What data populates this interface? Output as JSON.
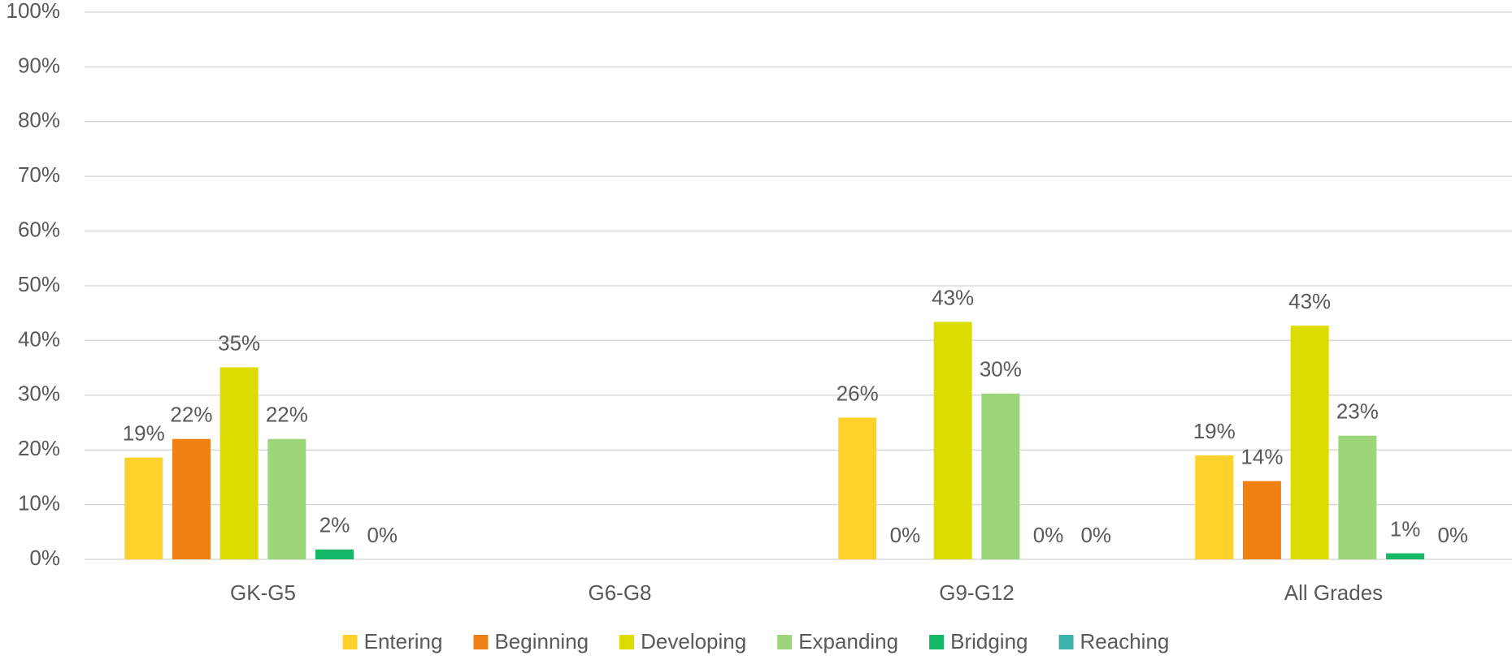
{
  "chart_data": {
    "type": "bar",
    "categories": [
      "GK-G5",
      "G6-G8",
      "G9-G12",
      "All Grades"
    ],
    "series": [
      {
        "name": "Entering",
        "color": "#ffd12b",
        "values": [
          18.6,
          null,
          25.9,
          19.0
        ],
        "value_labels": [
          "19%",
          null,
          "26%",
          "19%"
        ]
      },
      {
        "name": "Beginning",
        "color": "#f28113",
        "values": [
          22.0,
          null,
          0,
          14.3
        ],
        "value_labels": [
          "22%",
          null,
          "0%",
          "14%"
        ]
      },
      {
        "name": "Developing",
        "color": "#dcdc00",
        "values": [
          35.1,
          null,
          43.4,
          42.7
        ],
        "value_labels": [
          "35%",
          null,
          "43%",
          "43%"
        ]
      },
      {
        "name": "Expanding",
        "color": "#9dd57a",
        "values": [
          22.0,
          null,
          30.3,
          22.6
        ],
        "value_labels": [
          "22%",
          null,
          "30%",
          "23%"
        ]
      },
      {
        "name": "Bridging",
        "color": "#12b865",
        "values": [
          1.8,
          null,
          0,
          1.1
        ],
        "value_labels": [
          "2%",
          null,
          "0%",
          "1%"
        ]
      },
      {
        "name": "Reaching",
        "color": "#3fb3a8",
        "values": [
          0,
          null,
          0,
          0
        ],
        "value_labels": [
          "0%",
          null,
          "0%",
          "0%"
        ]
      }
    ],
    "ylim": [
      0,
      100
    ],
    "yticks": [
      {
        "value": 0,
        "label": "0%"
      },
      {
        "value": 10,
        "label": "10%"
      },
      {
        "value": 20,
        "label": "20%"
      },
      {
        "value": 30,
        "label": "30%"
      },
      {
        "value": 40,
        "label": "40%"
      },
      {
        "value": 50,
        "label": "50%"
      },
      {
        "value": 60,
        "label": "60%"
      },
      {
        "value": 70,
        "label": "70%"
      },
      {
        "value": 80,
        "label": "80%"
      },
      {
        "value": 90,
        "label": "90%"
      },
      {
        "value": 100,
        "label": "100%"
      }
    ],
    "grid": true,
    "legend": "bottom"
  }
}
